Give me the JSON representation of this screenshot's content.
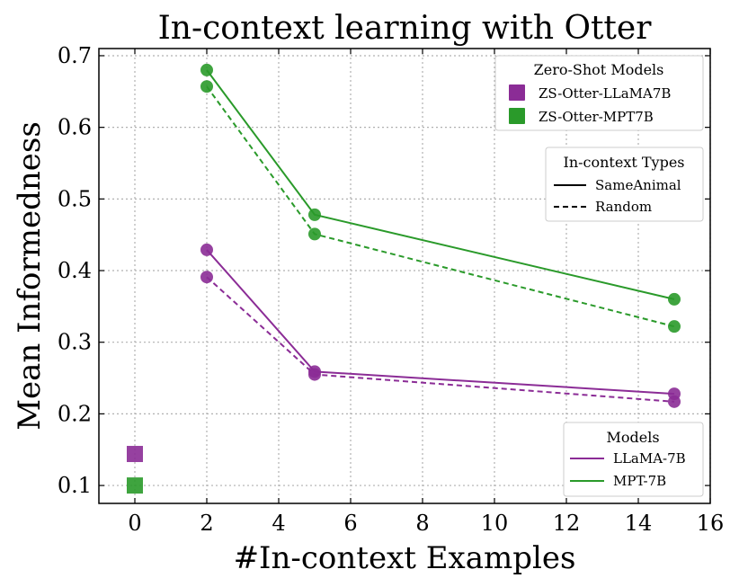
{
  "chart_data": {
    "type": "line",
    "title": "In-context learning with Otter",
    "xlabel": "#In-context Examples",
    "ylabel": "Mean Informedness",
    "xlim": [
      -1,
      16
    ],
    "ylim": [
      0.075,
      0.71
    ],
    "xticks": [
      0,
      2,
      4,
      6,
      8,
      10,
      12,
      14,
      16
    ],
    "yticks": [
      0.1,
      0.2,
      0.3,
      0.4,
      0.5,
      0.6,
      0.7
    ],
    "xtick_labels": [
      "0",
      "2",
      "4",
      "6",
      "8",
      "10",
      "12",
      "14",
      "16"
    ],
    "ytick_labels": [
      "0.1",
      "0.2",
      "0.3",
      "0.4",
      "0.5",
      "0.6",
      "0.7"
    ],
    "grid": true,
    "series": [
      {
        "name": "LLaMA-7B",
        "type": "SameAnimal",
        "color": "#8b2c96",
        "style": "solid",
        "x": [
          2,
          5,
          15
        ],
        "y": [
          0.429,
          0.259,
          0.228
        ]
      },
      {
        "name": "LLaMA-7B",
        "type": "Random",
        "color": "#8b2c96",
        "style": "dashed",
        "x": [
          2,
          5,
          15
        ],
        "y": [
          0.391,
          0.255,
          0.217
        ]
      },
      {
        "name": "MPT-7B",
        "type": "SameAnimal",
        "color": "#2a9a2a",
        "style": "solid",
        "x": [
          2,
          5,
          15
        ],
        "y": [
          0.68,
          0.478,
          0.36
        ]
      },
      {
        "name": "MPT-7B",
        "type": "Random",
        "color": "#2a9a2a",
        "style": "dashed",
        "x": [
          2,
          5,
          15
        ],
        "y": [
          0.657,
          0.451,
          0.322
        ]
      }
    ],
    "zero_shot": [
      {
        "name": "ZS-Otter-LLaMA7B",
        "color": "#8b2c96",
        "x": 0,
        "y": 0.144
      },
      {
        "name": "ZS-Otter-MPT7B",
        "color": "#2a9a2a",
        "x": 0,
        "y": 0.1
      }
    ],
    "legends": {
      "zero_shot": {
        "title": "Zero-Shot Models",
        "placement": "top-right",
        "entries": [
          "ZS-Otter-LLaMA7B",
          "ZS-Otter-MPT7B"
        ]
      },
      "types": {
        "title": "In-context Types",
        "placement": "upper-right",
        "entries": [
          "SameAnimal",
          "Random"
        ]
      },
      "models": {
        "title": "Models",
        "placement": "lower-right",
        "entries": [
          "LLaMA-7B",
          "MPT-7B"
        ]
      }
    }
  }
}
